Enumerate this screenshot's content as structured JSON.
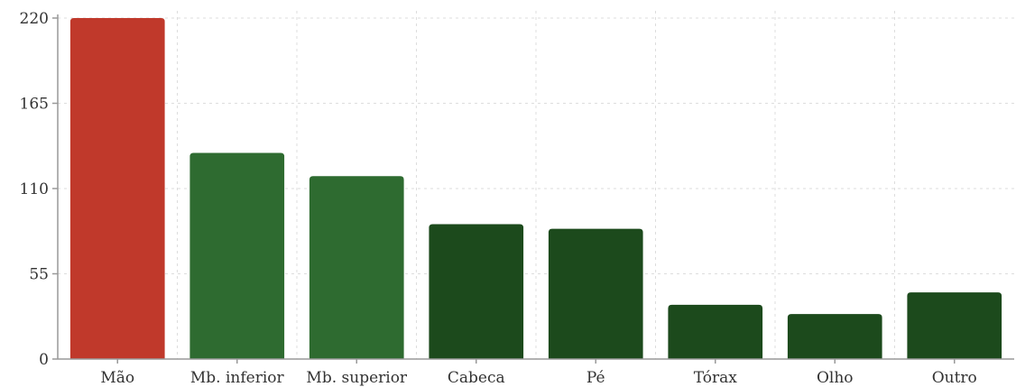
{
  "chart_data": {
    "type": "bar",
    "title": "",
    "xlabel": "",
    "ylabel": "",
    "categories": [
      "Mão",
      "Mb. inferior",
      "Mb. superior",
      "Cabeca",
      "Pé",
      "Tórax",
      "Olho",
      "Outro"
    ],
    "values": [
      220,
      133,
      118,
      87,
      84,
      35,
      29,
      43
    ],
    "colors": [
      "#c0392b",
      "#2e6b30",
      "#2e6b30",
      "#1c4a1c",
      "#1c4a1c",
      "#1c4a1c",
      "#1c4a1c",
      "#1c4a1c"
    ],
    "ylim": [
      0,
      220
    ],
    "yticks": [
      0,
      55,
      110,
      165,
      220
    ],
    "grid": true,
    "legend": "none"
  }
}
